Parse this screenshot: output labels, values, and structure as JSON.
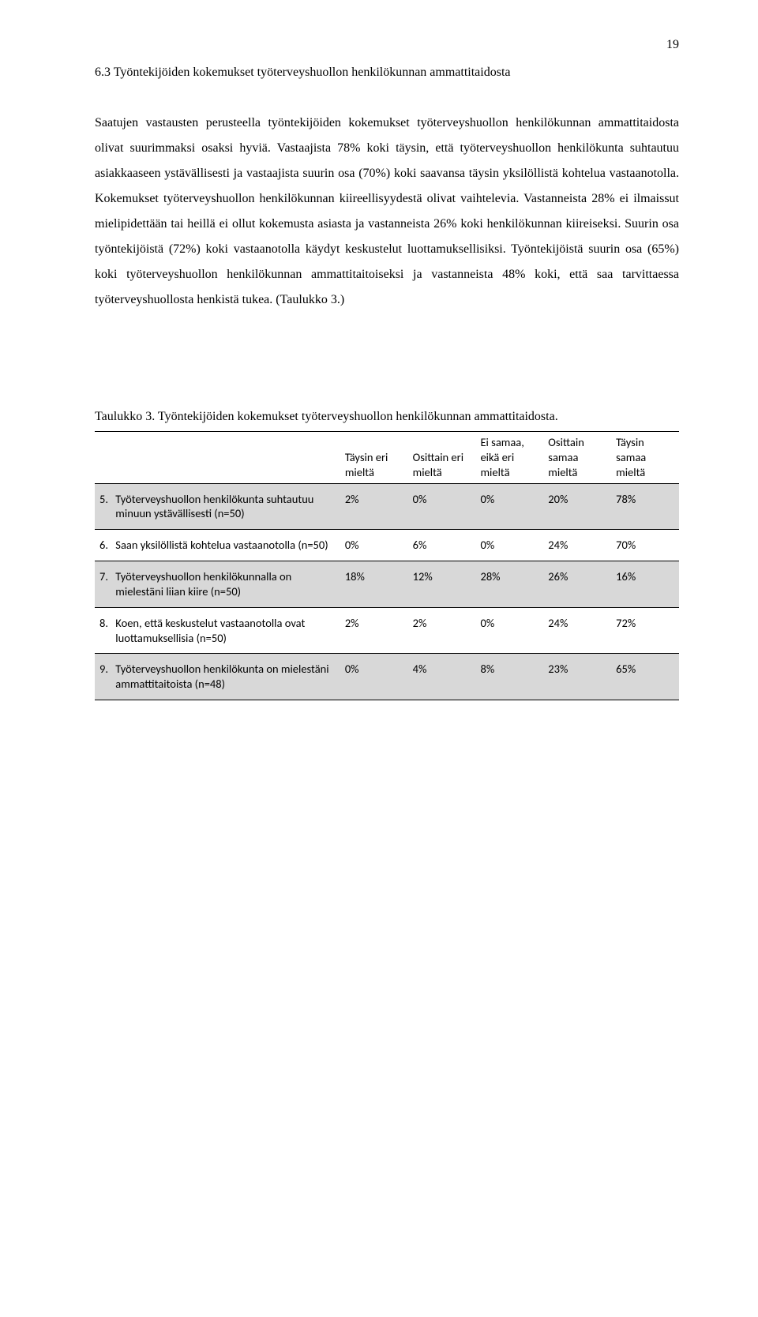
{
  "page_number": "19",
  "heading": "6.3  Työntekijöiden kokemukset työterveyshuollon henkilökunnan ammattitaidosta",
  "paragraph": "Saatujen vastausten perusteella työntekijöiden kokemukset työterveyshuollon henkilökunnan ammattitaidosta olivat suurimmaksi osaksi hyviä. Vastaajista 78% koki täysin, että työterveyshuollon henkilökunta suhtautuu asiakkaaseen ystävällisesti ja vastaajista suurin osa (70%) koki saavansa täysin yksilöllistä kohtelua vastaanotolla. Kokemukset työterveyshuollon henkilökunnan kiireellisyydestä olivat vaihtelevia. Vastanneista 28% ei ilmaissut mielipidettään tai heillä ei ollut kokemusta asiasta ja vastanneista 26% koki henkilökunnan kiireiseksi. Suurin osa työntekijöistä (72%) koki vastaanotolla käydyt keskustelut luottamuksellisiksi. Työntekijöistä suurin osa (65%) koki työterveyshuollon henkilökunnan ammattitaitoiseksi ja vastanneista 48% koki, että saa tarvittaessa työterveyshuollosta henkistä tukea. (Taulukko 3.)",
  "table": {
    "caption": "Taulukko 3. Työntekijöiden kokemukset työterveyshuollon henkilökunnan ammattitaidosta.",
    "columns": [
      "Täysin eri mieltä",
      "Osittain eri mieltä",
      "Ei samaa, eikä eri mieltä",
      "Osittain samaa mieltä",
      "Täysin samaa mieltä"
    ],
    "rows": [
      {
        "num": "5.",
        "label": "Työterveyshuollon henkilökunta suhtautuu minuun ystävällisesti (n=50)",
        "v": [
          "2%",
          "0%",
          "0%",
          "20%",
          "78%"
        ],
        "alt": true
      },
      {
        "num": "6.",
        "label": "Saan yksilöllistä kohtelua vastaanotolla (n=50)",
        "v": [
          "0%",
          "6%",
          "0%",
          "24%",
          "70%"
        ],
        "alt": false
      },
      {
        "num": "7.",
        "label": "Työterveyshuollon henkilökunnalla on mielestäni liian kiire (n=50)",
        "v": [
          "18%",
          "12%",
          "28%",
          "26%",
          "16%"
        ],
        "alt": true
      },
      {
        "num": "8.",
        "label": "Koen, että keskustelut vastaanotolla ovat luottamuksellisia (n=50)",
        "v": [
          "2%",
          "2%",
          "0%",
          "24%",
          "72%"
        ],
        "alt": false
      },
      {
        "num": "9.",
        "label": "Työterveyshuollon henkilökunta on mielestäni ammattitaitoista (n=48)",
        "v": [
          "0%",
          "4%",
          "8%",
          "23%",
          "65%"
        ],
        "alt": true
      }
    ]
  }
}
